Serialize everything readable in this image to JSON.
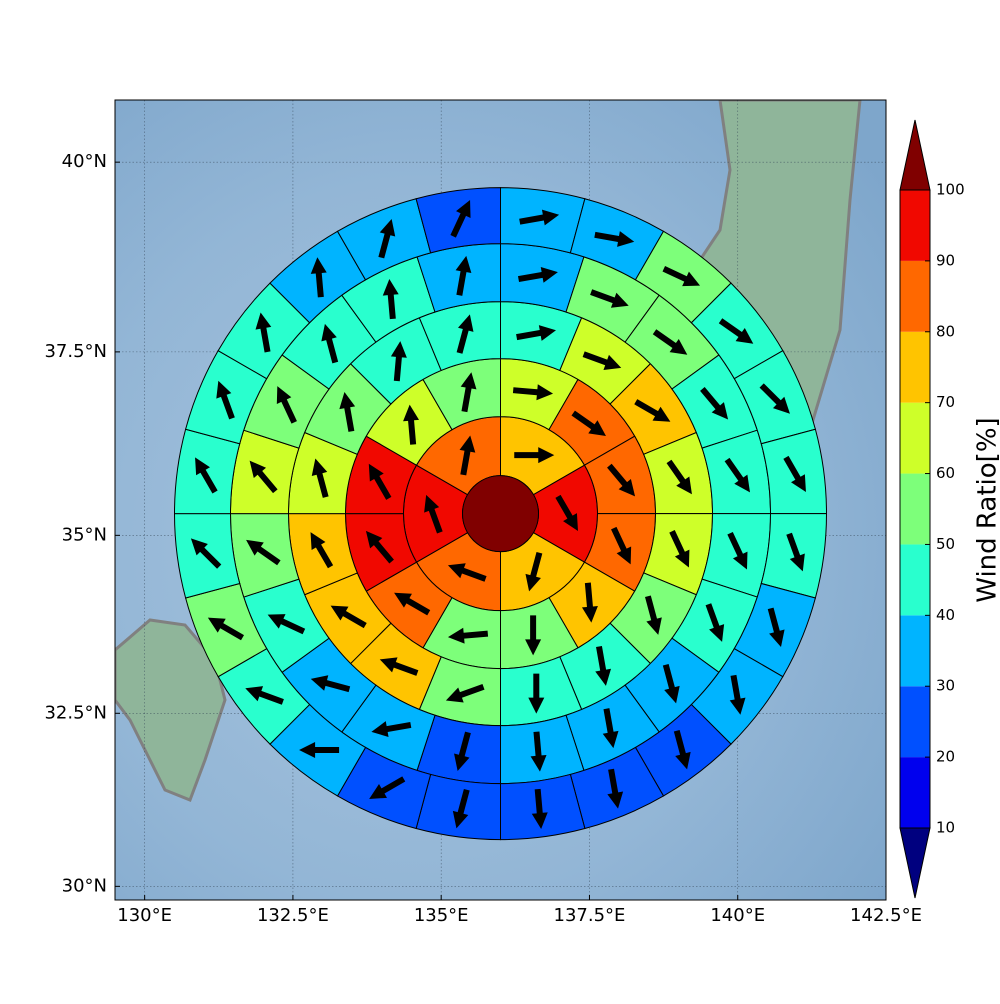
{
  "chart_data": {
    "type": "polar-wind-map",
    "xlim": [
      129.5,
      142.5
    ],
    "ylim": [
      29.8,
      40.8
    ],
    "xticks": [
      {
        "value": 130,
        "label": "130°E"
      },
      {
        "value": 132.5,
        "label": "132.5°E"
      },
      {
        "value": 135,
        "label": "135°E"
      },
      {
        "value": 137.5,
        "label": "137.5°E"
      },
      {
        "value": 140,
        "label": "140°E"
      },
      {
        "value": 142.5,
        "label": "142.5°E"
      }
    ],
    "yticks": [
      {
        "value": 30,
        "label": "30°N"
      },
      {
        "value": 32.5,
        "label": "32.5°N"
      },
      {
        "value": 35,
        "label": "35°N"
      },
      {
        "value": 37.5,
        "label": "37.5°N"
      },
      {
        "value": 40,
        "label": "40°N"
      }
    ],
    "grid": true,
    "center": [
      136.0,
      35.3
    ],
    "center_value": 100,
    "rings": [
      {
        "values": [
          75,
          95,
          75,
          85,
          95,
          85
        ],
        "directions": [
          90,
          150,
          195,
          290,
          340,
          10
        ]
      },
      {
        "values": [
          65,
          85,
          85,
          85,
          75,
          55,
          55,
          85,
          95,
          95,
          65,
          55
        ],
        "directions": [
          95,
          125,
          140,
          155,
          175,
          180,
          265,
          300,
          320,
          330,
          355,
          10
        ]
      },
      {
        "values": [
          45,
          65,
          75,
          65,
          65,
          55,
          45,
          45,
          55,
          75,
          75,
          75,
          65,
          55,
          45,
          45
        ],
        "directions": [
          80,
          110,
          120,
          145,
          155,
          165,
          170,
          180,
          250,
          290,
          300,
          330,
          345,
          350,
          5,
          15
        ]
      },
      {
        "values": [
          35,
          55,
          55,
          45,
          45,
          45,
          45,
          35,
          35,
          35,
          25,
          35,
          35,
          45,
          55,
          65,
          55,
          45,
          45,
          35
        ],
        "directions": [
          80,
          110,
          125,
          140,
          145,
          155,
          160,
          165,
          170,
          175,
          195,
          260,
          285,
          295,
          305,
          320,
          335,
          345,
          355,
          10
        ]
      },
      {
        "values": [
          35,
          35,
          55,
          45,
          45,
          45,
          45,
          35,
          35,
          25,
          25,
          25,
          25,
          25,
          35,
          45,
          55,
          45,
          45,
          45,
          45,
          35,
          35,
          25
        ],
        "directions": [
          80,
          100,
          115,
          125,
          135,
          150,
          160,
          165,
          170,
          165,
          170,
          175,
          195,
          240,
          270,
          290,
          300,
          315,
          330,
          340,
          350,
          355,
          15,
          25
        ]
      }
    ],
    "colorbar": {
      "label": "Wind Ratio[%]",
      "levels": [
        10,
        20,
        30,
        40,
        50,
        60,
        70,
        80,
        90,
        100
      ],
      "colors": [
        "#0000ee",
        "#0050ff",
        "#00b4ff",
        "#29ffce",
        "#7dff7a",
        "#ceff29",
        "#ffc400",
        "#ff6800",
        "#f10800"
      ],
      "under_color": "#00007f",
      "over_color": "#800000"
    }
  }
}
